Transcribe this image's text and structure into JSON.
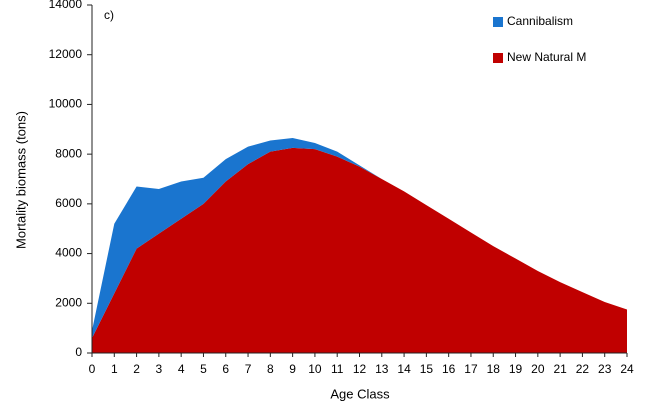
{
  "chart_data": {
    "type": "stacked_area",
    "annotation": "c)",
    "x_label": "Age Class",
    "y_label": "Mortality  biomass (tons)",
    "x": [
      0,
      1,
      2,
      3,
      4,
      5,
      6,
      7,
      8,
      9,
      10,
      11,
      12,
      13,
      14,
      15,
      16,
      17,
      18,
      19,
      20,
      21,
      22,
      23,
      24
    ],
    "xlim": [
      0,
      24
    ],
    "xticks": [
      0,
      1,
      2,
      3,
      4,
      5,
      6,
      7,
      8,
      9,
      10,
      11,
      12,
      13,
      14,
      15,
      16,
      17,
      18,
      19,
      20,
      21,
      22,
      23,
      24
    ],
    "ylim": [
      0,
      14000
    ],
    "yticks": [
      0,
      2000,
      4000,
      6000,
      8000,
      10000,
      12000,
      14000
    ],
    "grid": false,
    "legend": "upper right",
    "series": [
      {
        "name": "Cannibalism",
        "color": "#1a75cf",
        "values": [
          300,
          2800,
          2500,
          1800,
          1500,
          1050,
          900,
          700,
          450,
          400,
          250,
          200,
          50,
          0,
          0,
          0,
          0,
          0,
          0,
          0,
          0,
          0,
          0,
          0,
          0
        ]
      },
      {
        "name": "New Natural M",
        "color": "#c00000",
        "values": [
          600,
          2400,
          4200,
          4800,
          5400,
          6000,
          6900,
          7600,
          8100,
          8250,
          8200,
          7900,
          7500,
          7000,
          6500,
          5950,
          5400,
          4850,
          4300,
          3800,
          3300,
          2850,
          2450,
          2050,
          1750
        ]
      }
    ]
  }
}
